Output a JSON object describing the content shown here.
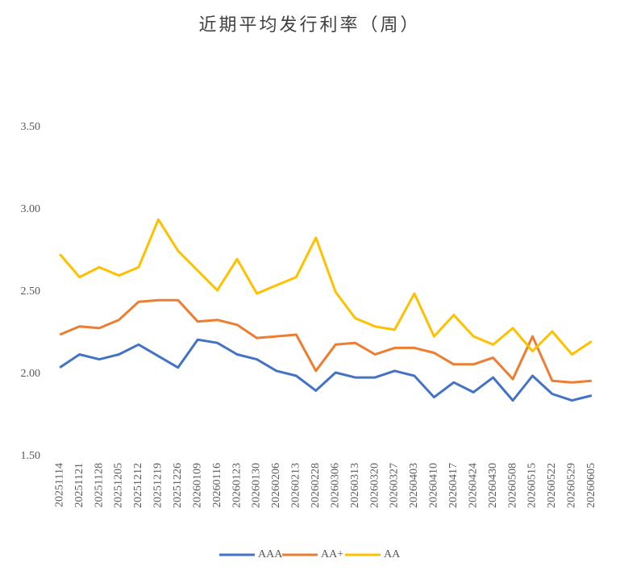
{
  "chart_data": {
    "type": "line",
    "title": "近期平均发行利率（周）",
    "categories": [
      "20251114",
      "20251121",
      "20251128",
      "20251205",
      "20251212",
      "20251219",
      "20251226",
      "20260109",
      "20260116",
      "20260123",
      "20260130",
      "20260206",
      "20260213",
      "20260228",
      "20260306",
      "20260313",
      "20260320",
      "20260327",
      "20260403",
      "20260410",
      "20260417",
      "20260424",
      "20260430",
      "20260508",
      "20260515",
      "20260522",
      "20260529",
      "20260605"
    ],
    "series": [
      {
        "name": "AAA",
        "color": "#4472c4",
        "values": [
          2.04,
          2.12,
          2.09,
          2.12,
          2.18,
          2.11,
          2.04,
          2.21,
          2.19,
          2.12,
          2.09,
          2.02,
          1.99,
          1.9,
          2.01,
          1.98,
          1.98,
          2.02,
          1.99,
          1.86,
          1.95,
          1.89,
          1.98,
          1.84,
          1.99,
          1.88,
          1.84,
          1.87
        ]
      },
      {
        "name": "AA+",
        "color": "#ed7d31",
        "values": [
          2.24,
          2.29,
          2.28,
          2.33,
          2.44,
          2.45,
          2.45,
          2.32,
          2.33,
          2.3,
          2.22,
          2.23,
          2.24,
          2.02,
          2.18,
          2.19,
          2.12,
          2.16,
          2.16,
          2.13,
          2.06,
          2.06,
          2.1,
          1.97,
          2.23,
          1.96,
          1.95,
          1.96
        ]
      },
      {
        "name": "AA",
        "color": "#ffc000",
        "values": [
          2.73,
          2.59,
          2.65,
          2.6,
          2.65,
          2.94,
          2.75,
          2.63,
          2.51,
          2.7,
          2.49,
          2.54,
          2.59,
          2.83,
          2.5,
          2.34,
          2.29,
          2.27,
          2.49,
          2.23,
          2.36,
          2.23,
          2.18,
          2.28,
          2.14,
          2.26,
          2.12,
          2.2
        ]
      }
    ],
    "ylim": [
      1.5,
      3.5
    ],
    "yticks": [
      {
        "value": 1.5,
        "label": "1.50"
      },
      {
        "value": 2,
        "label": "2.00"
      },
      {
        "value": 2.5,
        "label": "2.50"
      },
      {
        "value": 3,
        "label": "3.00"
      },
      {
        "value": 3.5,
        "label": "3.50"
      }
    ],
    "grid": false,
    "legend": "bottom"
  }
}
